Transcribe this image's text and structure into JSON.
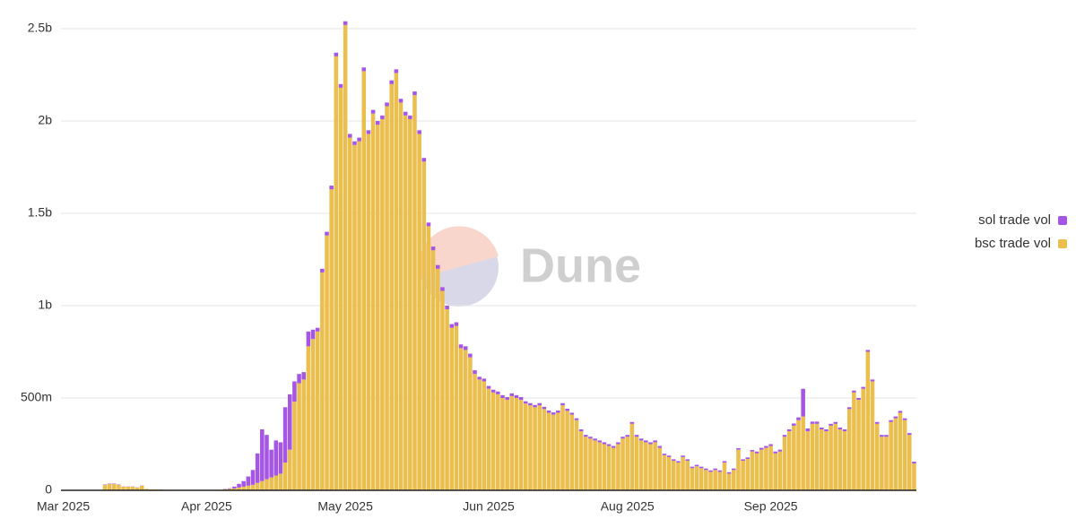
{
  "chart_data": {
    "type": "stacked-bar",
    "watermark": "Dune",
    "legend": "right",
    "grid": true,
    "ylim": [
      0,
      2500
    ],
    "yticks": [
      0,
      {
        "value": 500,
        "label": "500m"
      },
      {
        "value": 1000,
        "label": "1b"
      },
      {
        "value": 1500,
        "label": "1.5b"
      },
      {
        "value": 2000,
        "label": "2b"
      },
      {
        "value": 2500,
        "label": "2.5b"
      }
    ],
    "categories": [
      "Mar 2025",
      null,
      null,
      null,
      null,
      null,
      null,
      null,
      null,
      null,
      null,
      null,
      null,
      null,
      null,
      null,
      null,
      null,
      null,
      null,
      null,
      null,
      null,
      null,
      null,
      null,
      null,
      null,
      null,
      null,
      null,
      "Apr 2025",
      null,
      null,
      null,
      null,
      null,
      null,
      null,
      null,
      null,
      null,
      null,
      null,
      null,
      null,
      null,
      null,
      null,
      null,
      null,
      null,
      null,
      null,
      null,
      null,
      null,
      null,
      null,
      null,
      null,
      "May 2025",
      null,
      null,
      null,
      null,
      null,
      null,
      null,
      null,
      null,
      null,
      null,
      null,
      null,
      null,
      null,
      null,
      null,
      null,
      null,
      null,
      null,
      null,
      null,
      null,
      null,
      null,
      null,
      null,
      null,
      null,
      "Jun 2025",
      null,
      null,
      null,
      null,
      null,
      null,
      null,
      null,
      null,
      null,
      null,
      null,
      null,
      null,
      null,
      null,
      null,
      null,
      null,
      null,
      null,
      null,
      null,
      null,
      null,
      null,
      null,
      null,
      null,
      "Aug 2025",
      null,
      null,
      null,
      null,
      null,
      null,
      null,
      null,
      null,
      null,
      null,
      null,
      null,
      null,
      null,
      null,
      null,
      null,
      null,
      null,
      null,
      null,
      null,
      null,
      null,
      null,
      null,
      null,
      null,
      null,
      "Sep 2025",
      null,
      null,
      null,
      null,
      null,
      null,
      null,
      null,
      null,
      null,
      null,
      null,
      null,
      null,
      null,
      null,
      null,
      null,
      null,
      null,
      null,
      null,
      null,
      null,
      null,
      null,
      null,
      null,
      null,
      null,
      null
    ],
    "series": [
      {
        "name": "sol trade vol",
        "color": "#a557e3",
        "values": [
          0,
          0,
          0,
          0,
          0,
          0,
          0,
          0,
          0,
          2,
          2,
          2,
          2,
          1,
          1,
          1,
          1,
          1,
          0,
          0,
          0,
          0,
          0,
          0,
          0,
          0,
          0,
          0,
          0,
          0,
          0,
          0,
          0,
          0,
          0,
          2,
          3,
          10,
          20,
          30,
          50,
          80,
          160,
          280,
          240,
          150,
          190,
          170,
          300,
          300,
          110,
          50,
          40,
          80,
          50,
          20,
          20,
          20,
          20,
          20,
          20,
          20,
          20,
          20,
          20,
          20,
          20,
          20,
          20,
          20,
          20,
          20,
          20,
          20,
          20,
          20,
          20,
          20,
          20,
          20,
          20,
          20,
          20,
          20,
          20,
          20,
          20,
          20,
          20,
          20,
          15,
          15,
          15,
          15,
          15,
          15,
          15,
          15,
          15,
          15,
          12,
          12,
          12,
          12,
          12,
          12,
          12,
          12,
          12,
          12,
          10,
          10,
          10,
          10,
          10,
          10,
          10,
          10,
          10,
          10,
          10,
          10,
          10,
          10,
          10,
          10,
          10,
          10,
          10,
          10,
          8,
          8,
          8,
          8,
          8,
          8,
          8,
          8,
          8,
          8,
          8,
          8,
          8,
          8,
          8,
          8,
          8,
          8,
          8,
          8,
          10,
          10,
          10,
          10,
          10,
          10,
          10,
          10,
          12,
          15,
          150,
          15,
          12,
          12,
          10,
          10,
          10,
          10,
          10,
          10,
          10,
          10,
          10,
          10,
          10,
          10,
          10,
          10,
          10,
          10,
          10,
          10,
          10,
          10,
          10
        ]
      },
      {
        "name": "bsc trade vol",
        "color": "#ebbf4e",
        "values": [
          0,
          0,
          0,
          0,
          0,
          0,
          0,
          0,
          3,
          30,
          35,
          35,
          30,
          20,
          20,
          20,
          15,
          25,
          8,
          5,
          5,
          5,
          3,
          3,
          3,
          2,
          2,
          2,
          2,
          2,
          2,
          2,
          2,
          3,
          3,
          5,
          8,
          10,
          15,
          20,
          25,
          30,
          40,
          50,
          60,
          70,
          80,
          90,
          150,
          220,
          480,
          580,
          600,
          780,
          820,
          860,
          1180,
          1380,
          1630,
          2350,
          2180,
          2520,
          1910,
          1870,
          1890,
          2270,
          1930,
          2040,
          1980,
          2010,
          2080,
          2200,
          2260,
          2100,
          2030,
          2010,
          2140,
          1930,
          1780,
          1430,
          1300,
          1200,
          1080,
          980,
          880,
          890,
          770,
          760,
          720,
          630,
          600,
          590,
          550,
          530,
          520,
          500,
          490,
          510,
          500,
          490,
          470,
          460,
          450,
          460,
          440,
          420,
          410,
          420,
          460,
          430,
          410,
          380,
          320,
          290,
          280,
          270,
          260,
          250,
          240,
          230,
          250,
          280,
          290,
          360,
          290,
          270,
          260,
          250,
          260,
          230,
          190,
          180,
          160,
          150,
          180,
          160,
          120,
          130,
          120,
          110,
          100,
          110,
          100,
          150,
          90,
          110,
          220,
          160,
          170,
          210,
          200,
          220,
          230,
          240,
          200,
          210,
          290,
          320,
          350,
          380,
          400,
          320,
          360,
          360,
          330,
          320,
          350,
          360,
          330,
          320,
          440,
          530,
          490,
          550,
          750,
          590,
          360,
          290,
          290,
          370,
          390,
          420,
          380,
          300,
          145
        ]
      }
    ]
  }
}
